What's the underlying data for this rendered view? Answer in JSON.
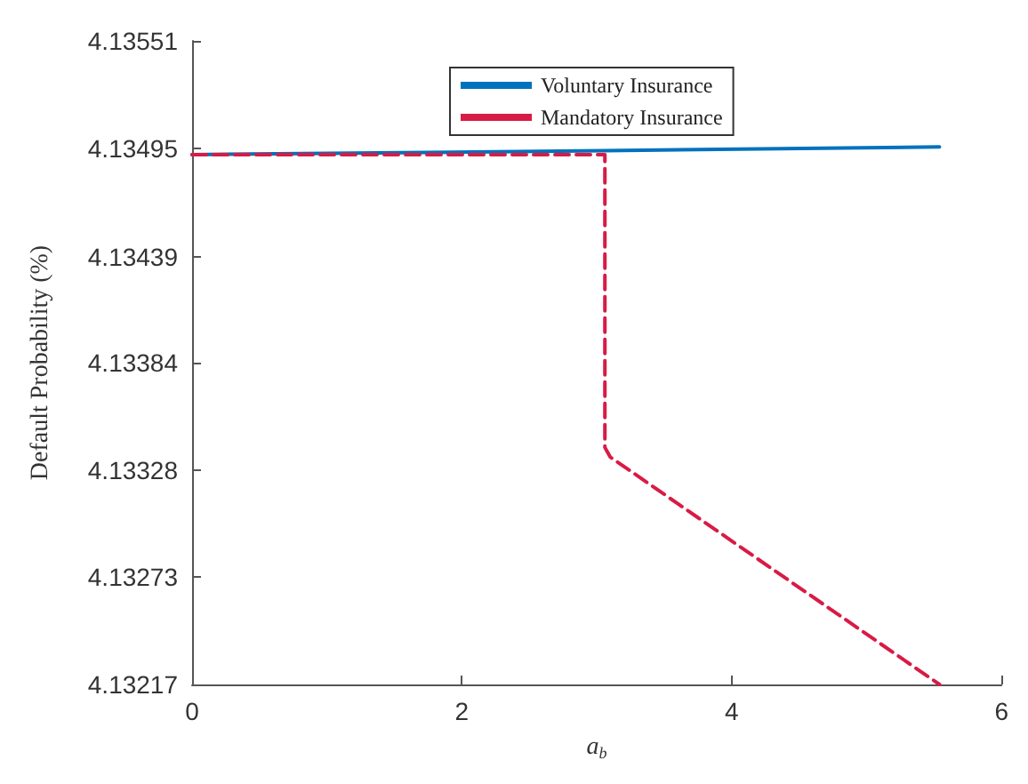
{
  "chart_data": {
    "type": "line",
    "xlabel": "a$_{b}$",
    "ylabel": "Default Probability (%)",
    "xlim": [
      0,
      6
    ],
    "xticks": [
      0,
      2,
      4,
      6
    ],
    "ylim": [
      4.13217,
      4.13551
    ],
    "yticks": [
      4.13217,
      4.13273,
      4.13328,
      4.13384,
      4.13439,
      4.13495,
      4.13551
    ],
    "legend": "top",
    "grid": false,
    "series": [
      {
        "name": "Voluntary Insurance",
        "color": "#0072bd",
        "line_style": "solid",
        "x": [
          0,
          3.06,
          5.54
        ],
        "values": [
          4.13492,
          4.13494,
          4.13496
        ]
      },
      {
        "name": "Mandatory Insurance",
        "color": "#d81b45",
        "line_style": "dashed",
        "x": [
          0,
          3.06,
          3.06,
          3.1,
          5.54
        ],
        "values": [
          4.13492,
          4.13492,
          4.1334,
          4.13335,
          4.13217
        ]
      }
    ]
  }
}
